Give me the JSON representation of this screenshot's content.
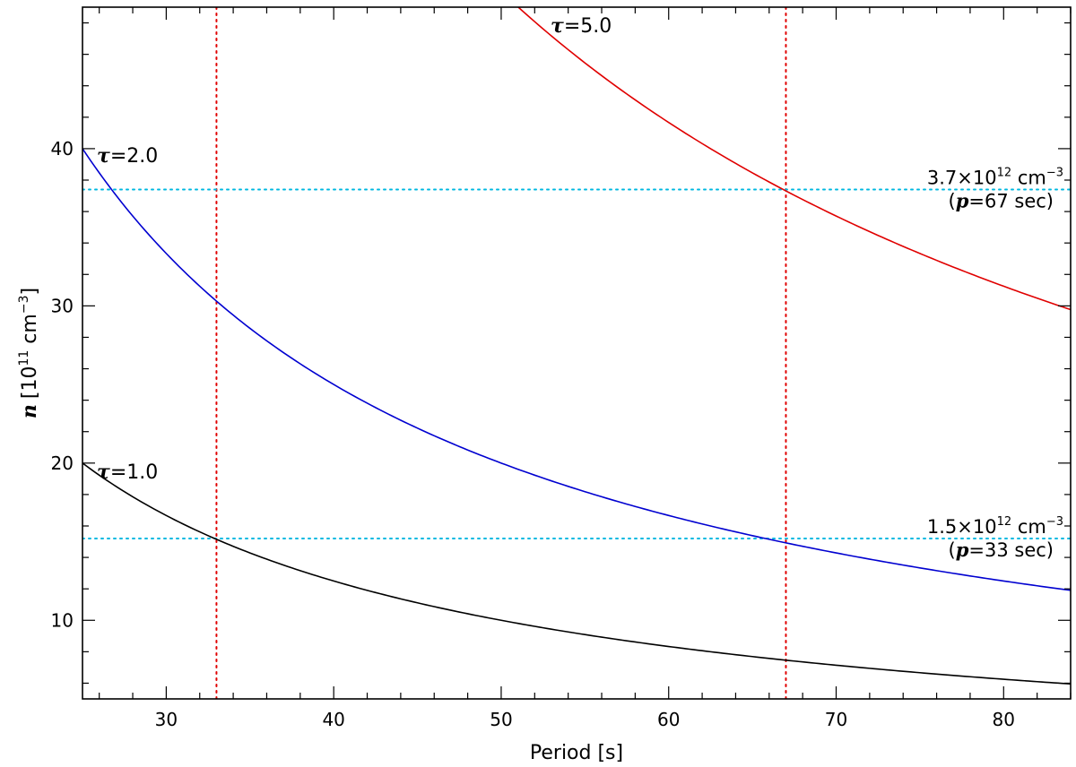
{
  "chart_data": {
    "type": "line",
    "title": "",
    "xlabel": "Period [s]",
    "ylabel": {
      "symbol": "n",
      "unit_prefix": "[10",
      "unit_exp": "11",
      "unit_mid": " cm",
      "unit_exp2": "−3",
      "unit_suffix": "]"
    },
    "xlim": [
      25,
      84
    ],
    "ylim": [
      5,
      49
    ],
    "x_ticks": [
      30,
      40,
      50,
      60,
      70,
      80
    ],
    "y_ticks": [
      10,
      20,
      30,
      40
    ],
    "x_minor_step": 2,
    "y_minor_step": 2,
    "grid": false,
    "curve_formula": "n = 20 * tau * 25 / period",
    "series": [
      {
        "name": "τ=1.0",
        "tau": 1.0,
        "color": "#000000",
        "x": [
          25,
          30,
          33,
          35,
          40,
          45,
          50,
          55,
          60,
          65,
          67,
          70,
          75,
          80,
          84
        ],
        "values": [
          20.0,
          16.67,
          15.15,
          14.29,
          12.5,
          11.11,
          10.0,
          9.09,
          8.33,
          7.69,
          7.46,
          7.14,
          6.67,
          6.25,
          5.95
        ],
        "label": {
          "sym": "τ",
          "val": "=1.0"
        }
      },
      {
        "name": "τ=2.0",
        "tau": 2.0,
        "color": "#0000d0",
        "x": [
          25,
          30,
          33,
          35,
          40,
          45,
          50,
          55,
          60,
          65,
          67,
          70,
          75,
          80,
          84
        ],
        "values": [
          40.0,
          33.33,
          30.3,
          28.57,
          25.0,
          22.22,
          20.0,
          18.18,
          16.67,
          15.38,
          14.93,
          14.29,
          13.33,
          12.5,
          11.9
        ],
        "label": {
          "sym": "τ",
          "val": "=2.0"
        }
      },
      {
        "name": "τ=5.0",
        "tau": 5.0,
        "color": "#e00000",
        "x": [
          51,
          55,
          60,
          65,
          67,
          70,
          75,
          80,
          84
        ],
        "values": [
          49.02,
          45.45,
          41.67,
          38.46,
          37.31,
          35.71,
          33.33,
          31.25,
          29.76
        ],
        "label": {
          "sym": "τ",
          "val": "=5.0"
        }
      }
    ],
    "vlines": [
      {
        "x": 33,
        "color": "#e00000",
        "style": "dotted"
      },
      {
        "x": 67,
        "color": "#e00000",
        "style": "dotted"
      }
    ],
    "hlines": [
      {
        "y": 37.4,
        "color": "#00b8e0",
        "style": "dotted",
        "annotation": {
          "line1_base": "3.7×10",
          "line1_exp": "12",
          "line1_unit": " cm",
          "line1_unit_exp": "−3",
          "line2_open": "(",
          "line2_sym": "p",
          "line2_rest": "=67 sec)"
        }
      },
      {
        "y": 15.2,
        "color": "#00b8e0",
        "style": "dotted",
        "annotation": {
          "line1_base": "1.5×10",
          "line1_exp": "12",
          "line1_unit": " cm",
          "line1_unit_exp": "−3",
          "line2_open": "(",
          "line2_sym": "p",
          "line2_rest": "=33 sec)"
        }
      }
    ]
  }
}
